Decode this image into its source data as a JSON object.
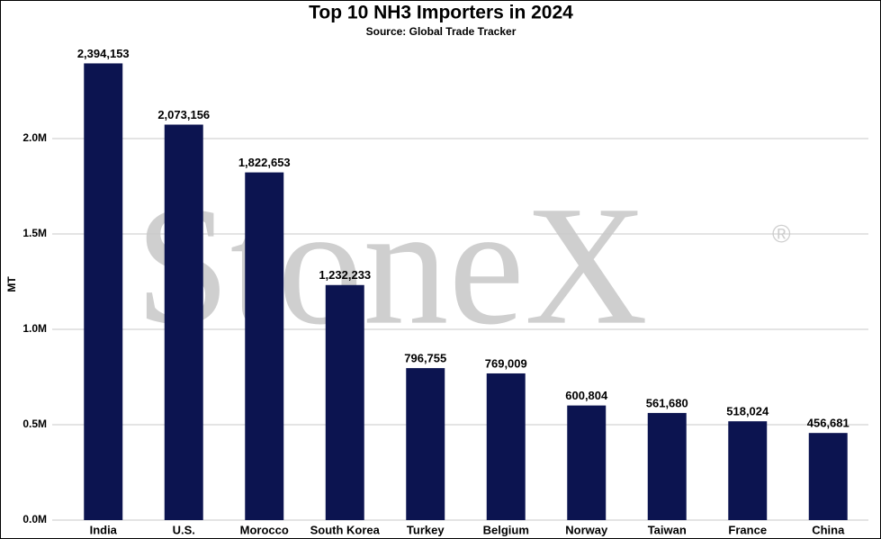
{
  "chart_data": {
    "type": "bar",
    "title": "Top 10 NH3 Importers in 2024",
    "subtitle": "Source: Global Trade Tracker",
    "y_label": "MT",
    "watermark": "StoneX",
    "watermark_symbol": "®",
    "categories": [
      "India",
      "U.S.",
      "Morocco",
      "South Korea",
      "Turkey",
      "Belgium",
      "Norway",
      "Taiwan",
      "France",
      "China"
    ],
    "values": [
      2394153,
      2073156,
      1822653,
      1232233,
      796755,
      769009,
      600804,
      561680,
      518024,
      456681
    ],
    "value_labels": [
      "2,394,153",
      "2,073,156",
      "1,822,653",
      "1,232,233",
      "796,755",
      "769,009",
      "600,804",
      "561,680",
      "518,024",
      "456,681"
    ],
    "color": "#0c1450",
    "ylim": [
      0,
      2500000
    ],
    "yticks": [
      {
        "value": 0,
        "label": "0.0M"
      },
      {
        "value": 500000,
        "label": "0.5M"
      },
      {
        "value": 1000000,
        "label": "1.0M"
      },
      {
        "value": 1500000,
        "label": "1.5M"
      },
      {
        "value": 2000000,
        "label": "2.0M"
      }
    ],
    "grid": true
  }
}
